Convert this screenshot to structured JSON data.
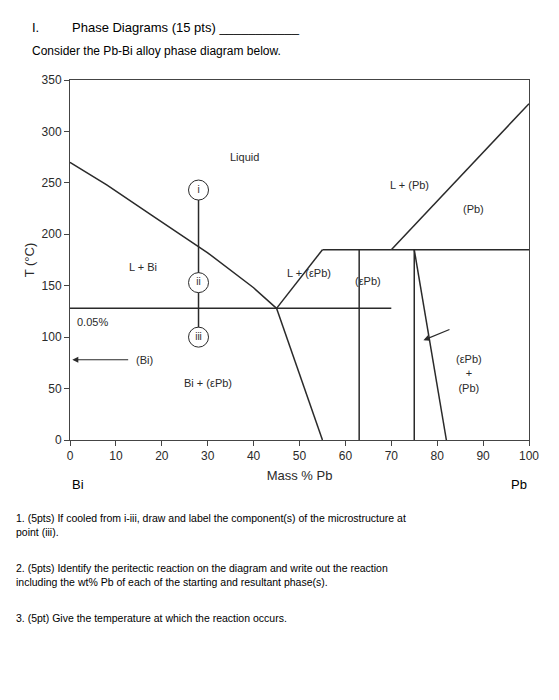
{
  "chart_data": {
    "type": "line",
    "heading": "I.",
    "title": "Phase Diagrams (15 pts) ___________",
    "subtitle": "Consider the Pb-Bi alloy phase diagram below.",
    "xlabel": "Mass % Pb",
    "ylabel": "T (°C)",
    "xlim": [
      0,
      100
    ],
    "ylim": [
      0,
      350
    ],
    "xticks": [
      0,
      10,
      20,
      30,
      40,
      50,
      60,
      70,
      80,
      90,
      100
    ],
    "yticks": [
      0,
      50,
      100,
      150,
      200,
      250,
      300,
      350
    ],
    "grid": false,
    "color": "#2a2a2a",
    "axis_end_labels": [
      "Bi",
      "Pb"
    ],
    "series": [
      {
        "x": [
          0,
          8,
          18,
          30,
          40,
          45
        ],
        "values": [
          270,
          248,
          218,
          182,
          148,
          128
        ]
      },
      {
        "x": [
          0,
          70
        ],
        "values": [
          128,
          128
        ]
      },
      {
        "x": [
          45,
          55
        ],
        "values": [
          128,
          185
        ]
      },
      {
        "x": [
          55,
          70
        ],
        "values": [
          185,
          185
        ]
      },
      {
        "x": [
          70,
          100
        ],
        "values": [
          185,
          327
        ]
      },
      {
        "x": [
          63,
          63
        ],
        "values": [
          0,
          185
        ]
      },
      {
        "x": [
          75,
          75
        ],
        "values": [
          0,
          185
        ]
      },
      {
        "x": [
          70,
          100
        ],
        "values": [
          185,
          185
        ]
      },
      {
        "x": [
          75,
          82
        ],
        "values": [
          185,
          0
        ]
      },
      {
        "x": [
          45,
          55
        ],
        "values": [
          128,
          0
        ]
      },
      {
        "x": [
          28,
          28
        ],
        "values": [
          243,
          100
        ]
      }
    ],
    "points": [
      {
        "text": "i",
        "x": 28,
        "y": 243
      },
      {
        "text": "ii",
        "x": 28,
        "y": 153
      },
      {
        "text": "iii",
        "x": 28,
        "y": 100
      }
    ],
    "annotations": [
      {
        "text": "Liquid",
        "x": 38,
        "y": 275
      },
      {
        "text": "L + Bi",
        "x": 16,
        "y": 168
      },
      {
        "text": "Bi + (εPb)",
        "x": 30,
        "y": 55
      },
      {
        "text": "(εPb)",
        "x": 65,
        "y": 155
      },
      {
        "text": "(Pb)",
        "x": 88,
        "y": 225
      },
      {
        "text": "(εPb)\n+\n(Pb)",
        "x": 87,
        "y": 65
      },
      {
        "text": "L + (εPb)",
        "x": 52,
        "y": 162
      },
      {
        "text": "L + (Pb)",
        "x": 74,
        "y": 248
      },
      {
        "text": "0.05%",
        "x": 1,
        "y": 115
      },
      {
        "text": "(Bi)",
        "x": 14,
        "y": 78
      }
    ],
    "arrows": [
      {
        "x": 0.5,
        "y": 78,
        "from_x": 13,
        "from_y": 78
      },
      {
        "x": 77,
        "y": 97,
        "from_x": 83,
        "from_y": 108
      }
    ],
    "questions": [
      "1. (5pts) If cooled from i-iii, draw and label the component(s) of the microstructure at\npoint (iii).",
      "2. (5pts) Identify the peritectic reaction on the diagram and write out the reaction\nincluding the wt% Pb of each of the starting and resultant phase(s).",
      "3. (5pt) Give the temperature at which the reaction occurs."
    ]
  }
}
